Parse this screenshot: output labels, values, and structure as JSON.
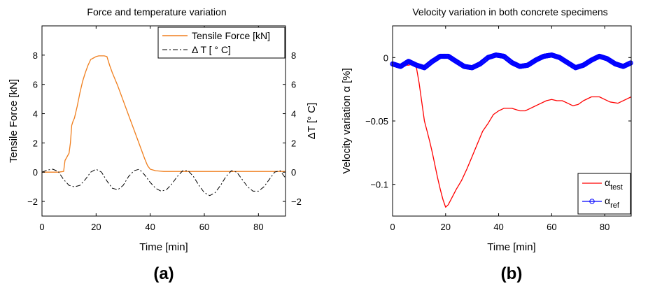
{
  "chart_data": [
    {
      "type": "line",
      "panel_label": "(a)",
      "title": "Force and temperature variation",
      "xlabel": "Time [min]",
      "ylabel": "Tensile Force [kN]",
      "ylabel_right": "ΔT [° C]",
      "xlim": [
        0,
        90
      ],
      "ylim": [
        -3,
        10
      ],
      "ylim_right": [
        -3,
        10
      ],
      "xticks": [
        "0",
        "20",
        "40",
        "60",
        "80"
      ],
      "yticks": [
        "−2",
        "0",
        "2",
        "4",
        "6",
        "8"
      ],
      "yticks_right": [
        "−2",
        "0",
        "2",
        "4",
        "6",
        "8"
      ],
      "grid": false,
      "legend_position": "top-right",
      "series": [
        {
          "name": "Tensile Force [kN]",
          "color": "#f07f1e",
          "style": "solid",
          "axis": "left",
          "x": [
            0,
            3,
            6,
            8,
            8.5,
            10,
            10.5,
            11,
            11.5,
            12,
            13,
            14,
            15,
            16,
            17,
            18,
            19,
            20,
            21,
            22,
            23,
            24,
            25,
            26,
            28,
            30,
            32,
            34,
            36,
            38,
            39,
            40,
            42,
            45,
            50,
            60,
            70,
            80,
            90
          ],
          "y": [
            0,
            0,
            0,
            0.05,
            0.8,
            1.3,
            2.0,
            3.2,
            3.5,
            3.7,
            4.5,
            5.4,
            6.2,
            6.8,
            7.3,
            7.7,
            7.8,
            7.9,
            7.95,
            7.95,
            7.95,
            7.9,
            7.3,
            6.8,
            5.9,
            4.9,
            3.9,
            2.9,
            1.9,
            0.9,
            0.45,
            0.2,
            0.1,
            0.05,
            0.05,
            0.05,
            0.05,
            0.05,
            0.05
          ]
        },
        {
          "name": "Δ T [ ° C]",
          "color": "#000000",
          "style": "dash-dot",
          "axis": "right",
          "x": [
            0,
            2,
            4,
            6,
            8,
            10,
            12,
            14,
            16,
            18,
            20,
            22,
            24,
            26,
            28,
            30,
            32,
            34,
            36,
            38,
            40,
            42,
            44,
            46,
            48,
            50,
            52,
            54,
            56,
            58,
            60,
            62,
            64,
            66,
            68,
            70,
            72,
            74,
            76,
            78,
            80,
            82,
            84,
            86,
            88,
            90
          ],
          "y": [
            0,
            0.15,
            0.2,
            0.05,
            -0.5,
            -0.9,
            -1.0,
            -0.9,
            -0.5,
            0.0,
            0.2,
            0.0,
            -0.6,
            -1.1,
            -1.2,
            -0.9,
            -0.3,
            0.1,
            0.2,
            -0.2,
            -0.7,
            -1.1,
            -1.3,
            -1.2,
            -0.8,
            -0.3,
            0.1,
            0.1,
            -0.3,
            -0.9,
            -1.4,
            -1.6,
            -1.4,
            -0.9,
            -0.3,
            0.1,
            0.0,
            -0.5,
            -1.0,
            -1.3,
            -1.3,
            -1.0,
            -0.5,
            0.0,
            0.1,
            -0.4
          ]
        }
      ]
    },
    {
      "type": "line",
      "panel_label": "(b)",
      "title": "Velocity variation in both concrete specimens",
      "xlabel": "Time [min]",
      "ylabel": "Velocity variation α [%]",
      "xlim": [
        0,
        90
      ],
      "ylim": [
        -0.125,
        0.025
      ],
      "xticks": [
        "0",
        "20",
        "40",
        "60",
        "80"
      ],
      "yticks": [
        "−0.1",
        "−0.05",
        "0"
      ],
      "grid": false,
      "legend_position": "bottom-right",
      "series": [
        {
          "name": "α",
          "name_subscript": "test",
          "color": "#ff0000",
          "style": "solid",
          "x": [
            0,
            2,
            4,
            6,
            8,
            9,
            10,
            11,
            12,
            13,
            14,
            15,
            16,
            17,
            18,
            19,
            20,
            21,
            22,
            24,
            26,
            28,
            30,
            32,
            34,
            36,
            38,
            40,
            42,
            45,
            48,
            50,
            52,
            55,
            58,
            60,
            62,
            64,
            66,
            68,
            70,
            72,
            75,
            78,
            80,
            82,
            85,
            88,
            90
          ],
          "y": [
            -0.005,
            -0.005,
            -0.006,
            -0.006,
            -0.005,
            -0.008,
            -0.02,
            -0.035,
            -0.05,
            -0.058,
            -0.066,
            -0.075,
            -0.085,
            -0.095,
            -0.104,
            -0.112,
            -0.118,
            -0.116,
            -0.112,
            -0.104,
            -0.097,
            -0.088,
            -0.078,
            -0.068,
            -0.058,
            -0.052,
            -0.045,
            -0.042,
            -0.04,
            -0.04,
            -0.042,
            -0.042,
            -0.04,
            -0.037,
            -0.034,
            -0.033,
            -0.034,
            -0.034,
            -0.036,
            -0.038,
            -0.037,
            -0.034,
            -0.031,
            -0.031,
            -0.033,
            -0.035,
            -0.036,
            -0.033,
            -0.031
          ]
        },
        {
          "name": "α",
          "name_subscript": "ref",
          "color": "#0000ff",
          "style": "solid-circle-markers",
          "x": [
            0,
            3,
            6,
            9,
            12,
            15,
            18,
            21,
            24,
            27,
            30,
            33,
            36,
            39,
            42,
            45,
            48,
            51,
            54,
            57,
            60,
            63,
            66,
            69,
            72,
            75,
            78,
            81,
            84,
            87,
            90
          ],
          "y": [
            -0.005,
            -0.007,
            -0.003,
            -0.006,
            -0.008,
            -0.003,
            0.001,
            0.001,
            -0.003,
            -0.007,
            -0.008,
            -0.005,
            0.0,
            0.002,
            0.001,
            -0.004,
            -0.007,
            -0.006,
            -0.002,
            0.001,
            0.002,
            0.0,
            -0.004,
            -0.008,
            -0.006,
            -0.002,
            0.001,
            -0.001,
            -0.005,
            -0.007,
            -0.004
          ]
        }
      ]
    }
  ]
}
